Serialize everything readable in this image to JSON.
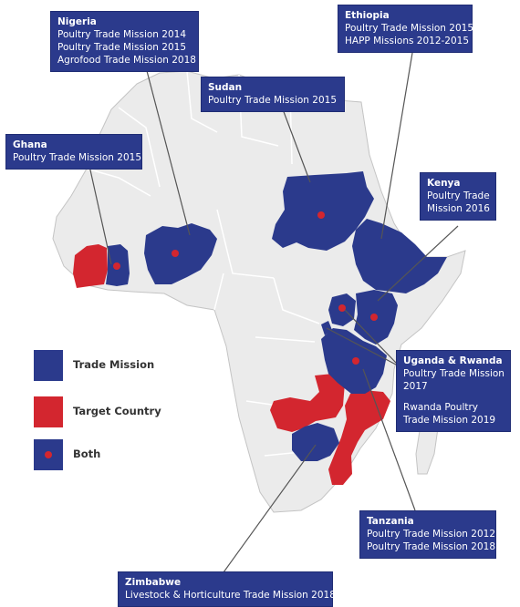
{
  "colors": {
    "trade_mission": "#2b3a8c",
    "target_country": "#d3262f",
    "both_dot": "#d3262f",
    "land": "#ebebeb",
    "borders": "#c4c4c4",
    "leader_line": "#555555"
  },
  "legend": {
    "trade_mission": "Trade Mission",
    "target_country": "Target Country",
    "both": "Both"
  },
  "callouts": {
    "nigeria": {
      "title": "Nigeria",
      "lines": [
        "Poultry Trade Mission 2014",
        "Poultry Trade Mission 2015",
        "Agrofood Trade Mission 2018"
      ]
    },
    "ethiopia": {
      "title": "Ethiopia",
      "lines": [
        "Poultry Trade Mission 2015",
        "HAPP Missions 2012-2015"
      ]
    },
    "sudan": {
      "title": "Sudan",
      "lines": [
        "Poultry Trade Mission 2015"
      ]
    },
    "ghana": {
      "title": "Ghana",
      "lines": [
        "Poultry Trade Mission 2015"
      ]
    },
    "kenya": {
      "title": "Kenya",
      "lines": [
        "Poultry Trade Mission 2016"
      ]
    },
    "uganda_rwanda": {
      "title": "Uganda & Rwanda",
      "lines": [
        "Poultry Trade Mission 2017"
      ],
      "lines2": [
        "Rwanda Poultry Trade Mission 2019"
      ]
    },
    "tanzania": {
      "title": "Tanzania",
      "lines": [
        "Poultry Trade Mission 2012",
        "Poultry Trade Mission 2018"
      ]
    },
    "zimbabwe": {
      "title": "Zimbabwe",
      "lines": [
        "Livestock & Horticulture Trade Mission 2018"
      ]
    }
  }
}
